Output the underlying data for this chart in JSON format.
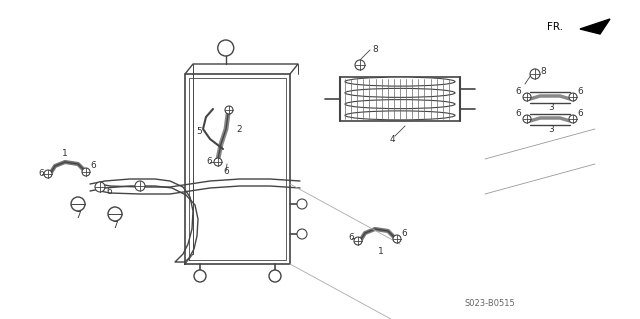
{
  "background_color": "#ffffff",
  "line_color": "#444444",
  "text_color": "#333333",
  "part_number": "S023-B0515",
  "fig_width": 6.4,
  "fig_height": 3.19,
  "dpi": 100
}
